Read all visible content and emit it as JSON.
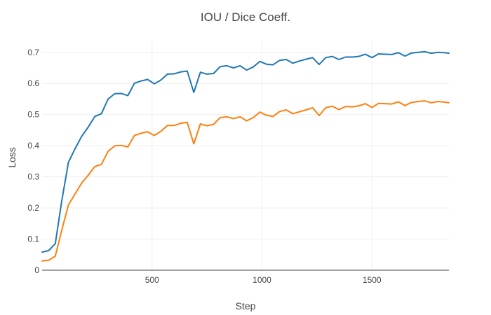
{
  "chart_data": {
    "type": "line",
    "title": "IOU / Dice Coeff.",
    "xlabel": "Step",
    "ylabel": "Loss",
    "xlim": [
      0,
      1850
    ],
    "ylim": [
      0,
      0.74
    ],
    "x_ticks": [
      500,
      1000,
      1500
    ],
    "y_ticks": [
      0,
      0.1,
      0.2,
      0.3,
      0.4,
      0.5,
      0.6,
      0.7
    ],
    "y_tick_labels": [
      "0",
      "0.1",
      "0.2",
      "0.3",
      "0.4",
      "0.5",
      "0.6",
      "0.7"
    ],
    "x_tick_labels": [
      "500",
      "1000",
      "1500"
    ],
    "grid": true,
    "legend": false,
    "x": [
      0,
      30,
      60,
      90,
      120,
      150,
      180,
      210,
      240,
      270,
      300,
      330,
      360,
      390,
      420,
      450,
      480,
      510,
      540,
      570,
      600,
      630,
      660,
      690,
      720,
      750,
      780,
      810,
      840,
      870,
      900,
      930,
      960,
      990,
      1020,
      1050,
      1080,
      1110,
      1140,
      1170,
      1200,
      1230,
      1260,
      1290,
      1320,
      1350,
      1380,
      1410,
      1440,
      1470,
      1500,
      1530,
      1560,
      1590,
      1620,
      1650,
      1680,
      1710,
      1740,
      1770,
      1800,
      1830,
      1850
    ],
    "series": [
      {
        "name": "",
        "color": "#1f77b4",
        "values": [
          0.058,
          0.063,
          0.085,
          0.225,
          0.347,
          0.39,
          0.43,
          0.46,
          0.494,
          0.503,
          0.55,
          0.567,
          0.568,
          0.561,
          0.601,
          0.608,
          0.613,
          0.599,
          0.611,
          0.63,
          0.631,
          0.637,
          0.64,
          0.571,
          0.636,
          0.63,
          0.632,
          0.654,
          0.657,
          0.65,
          0.657,
          0.643,
          0.653,
          0.671,
          0.662,
          0.66,
          0.674,
          0.677,
          0.665,
          0.672,
          0.678,
          0.683,
          0.661,
          0.683,
          0.687,
          0.677,
          0.685,
          0.685,
          0.687,
          0.694,
          0.683,
          0.695,
          0.694,
          0.693,
          0.699,
          0.688,
          0.698,
          0.7,
          0.702,
          0.697,
          0.7,
          0.699,
          0.697
        ]
      },
      {
        "name": "",
        "color": "#ff7f0e",
        "values": [
          0.03,
          0.032,
          0.045,
          0.13,
          0.21,
          0.245,
          0.28,
          0.305,
          0.333,
          0.34,
          0.382,
          0.4,
          0.401,
          0.396,
          0.433,
          0.44,
          0.445,
          0.433,
          0.446,
          0.465,
          0.465,
          0.472,
          0.475,
          0.406,
          0.47,
          0.464,
          0.469,
          0.49,
          0.493,
          0.487,
          0.493,
          0.48,
          0.49,
          0.508,
          0.498,
          0.494,
          0.51,
          0.515,
          0.503,
          0.509,
          0.515,
          0.522,
          0.497,
          0.522,
          0.527,
          0.516,
          0.526,
          0.525,
          0.528,
          0.535,
          0.523,
          0.536,
          0.535,
          0.534,
          0.541,
          0.529,
          0.539,
          0.542,
          0.544,
          0.538,
          0.542,
          0.54,
          0.538
        ]
      }
    ]
  }
}
